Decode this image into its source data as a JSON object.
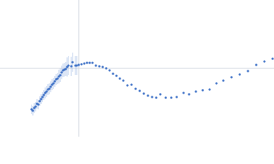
{
  "chart_data": {
    "type": "scatter",
    "xlim": [
      -1.15,
      2.85
    ],
    "ylim": [
      -1,
      1
    ],
    "zero_lines": true,
    "color": "#3b6fc6",
    "error_color": "#a9bfe6",
    "x": [
      -0.69,
      -0.67,
      -0.65,
      -0.63,
      -0.61,
      -0.59,
      -0.57,
      -0.55,
      -0.53,
      -0.51,
      -0.49,
      -0.47,
      -0.45,
      -0.43,
      -0.41,
      -0.39,
      -0.37,
      -0.35,
      -0.33,
      -0.31,
      -0.29,
      -0.27,
      -0.25,
      -0.23,
      -0.21,
      -0.19,
      -0.17,
      -0.15,
      -0.11,
      -0.09,
      -0.05,
      -0.03,
      0,
      0.04,
      0.08,
      0.12,
      0.16,
      0.2,
      0.25,
      0.3,
      0.35,
      0.4,
      0.45,
      0.5,
      0.55,
      0.6,
      0.65,
      0.71,
      0.77,
      0.83,
      0.89,
      0.95,
      1.01,
      1.07,
      1.13,
      1.19,
      1.27,
      1.35,
      1.43,
      1.53,
      1.61,
      1.71,
      1.81,
      1.91,
      2.01,
      2.11,
      2.23,
      2.35,
      2.47,
      2.59,
      2.71,
      2.83
    ],
    "values": [
      -0.6,
      -0.62,
      -0.58,
      -0.56,
      -0.52,
      -0.53,
      -0.48,
      -0.45,
      -0.42,
      -0.39,
      -0.36,
      -0.34,
      -0.31,
      -0.3,
      -0.27,
      -0.24,
      -0.22,
      -0.19,
      -0.16,
      -0.15,
      -0.12,
      -0.1,
      -0.06,
      -0.03,
      -0.02,
      -0.01,
      0.02,
      0.04,
      0.03,
      0.09,
      0.04,
      0.04,
      0.05,
      0.06,
      0.07,
      0.08,
      0.08,
      0.08,
      0.04,
      0.03,
      0.02,
      0,
      -0.03,
      -0.08,
      -0.11,
      -0.15,
      -0.18,
      -0.25,
      -0.24,
      -0.3,
      -0.33,
      -0.37,
      -0.4,
      -0.42,
      -0.43,
      -0.38,
      -0.43,
      -0.43,
      -0.42,
      -0.36,
      -0.38,
      -0.34,
      -0.32,
      -0.31,
      -0.22,
      -0.18,
      -0.13,
      -0.09,
      -0.04,
      0.05,
      0.1,
      0.14
    ],
    "errors": [
      0.07,
      0.07,
      0.07,
      0.07,
      0.07,
      0.07,
      0.07,
      0.07,
      0.07,
      0.07,
      0.08,
      0.08,
      0.08,
      0.08,
      0.08,
      0.08,
      0.08,
      0.08,
      0.08,
      0.08,
      0.1,
      0.1,
      0.1,
      0.1,
      0.1,
      0.1,
      0.14,
      0.14,
      0.14,
      0.14,
      0.14,
      0.14,
      0.03,
      0.01,
      0.01,
      0.01,
      0.01,
      0.01,
      0.01,
      0.01,
      0.01,
      0.01,
      0.01,
      0.01,
      0.01,
      0.01,
      0.01,
      0.01,
      0.01,
      0.01,
      0.01,
      0.01,
      0.01,
      0.01,
      0.01,
      0.01,
      0.01,
      0.01,
      0.01,
      0.01,
      0.01,
      0.01,
      0.01,
      0.01,
      0.01,
      0.01,
      0.01,
      0.01,
      0.01,
      0.01,
      0.01,
      0.01
    ]
  }
}
